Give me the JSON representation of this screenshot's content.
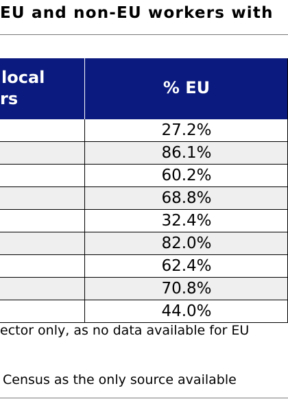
{
  "title": "EU and non-EU workers with",
  "table": {
    "header_left_line1": "local",
    "header_left_line2": "rs",
    "header_right": "% EU",
    "rows": [
      "27.2%",
      "86.1%",
      "60.2%",
      "68.8%",
      "32.4%",
      "82.0%",
      "62.4%",
      "70.8%",
      "44.0%"
    ]
  },
  "notes": {
    "line1": "ector only, as no data available for EU",
    "line2": "Census as the only source available"
  },
  "colors": {
    "header_bg": "#0a1a7e",
    "row_alt_bg": "#efefef"
  }
}
